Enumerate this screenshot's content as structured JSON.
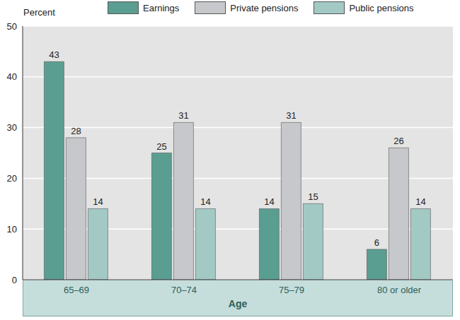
{
  "chart_data": {
    "type": "bar",
    "y_label": "Percent",
    "x_label": "Age",
    "categories": [
      "65–69",
      "70–74",
      "75–79",
      "80 or older"
    ],
    "series": [
      {
        "name": "Earnings",
        "color": "#5a9e91",
        "values": [
          43,
          25,
          14,
          6
        ]
      },
      {
        "name": "Private pensions",
        "color": "#c6c8cb",
        "values": [
          28,
          31,
          31,
          26
        ]
      },
      {
        "name": "Public pensions",
        "color": "#a3c9c4",
        "values": [
          14,
          14,
          15,
          14
        ]
      }
    ],
    "ylim": [
      0,
      50
    ],
    "yticks": [
      0,
      10,
      20,
      30,
      40,
      50
    ],
    "grid": true,
    "legend": "top",
    "data_labels": true
  }
}
